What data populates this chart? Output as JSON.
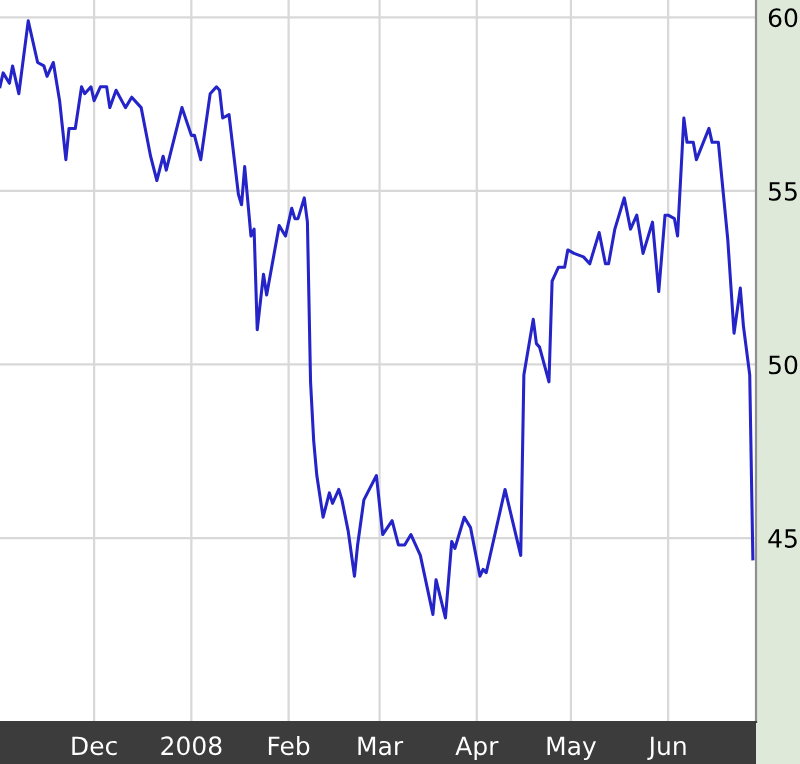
{
  "chart_data": {
    "type": "line",
    "x": [
      "2007-11-01",
      "2007-11-02",
      "2007-11-04",
      "2007-11-05",
      "2007-11-07",
      "2007-11-10",
      "2007-11-13",
      "2007-11-15",
      "2007-11-16",
      "2007-11-18",
      "2007-11-20",
      "2007-11-22",
      "2007-11-23",
      "2007-11-25",
      "2007-11-27",
      "2007-11-28",
      "2007-11-30",
      "2007-12-01",
      "2007-12-03",
      "2007-12-05",
      "2007-12-06",
      "2007-12-08",
      "2007-12-11",
      "2007-12-13",
      "2007-12-16",
      "2007-12-19",
      "2007-12-21",
      "2007-12-23",
      "2007-12-24",
      "2007-12-29",
      "2008-01-01",
      "2008-01-02",
      "2008-01-04",
      "2008-01-07",
      "2008-01-09",
      "2008-01-10",
      "2008-01-11",
      "2008-01-13",
      "2008-01-16",
      "2008-01-17",
      "2008-01-18",
      "2008-01-20",
      "2008-01-21",
      "2008-01-22",
      "2008-01-24",
      "2008-01-25",
      "2008-01-29",
      "2008-01-31",
      "2008-02-02",
      "2008-02-03",
      "2008-02-04",
      "2008-02-06",
      "2008-02-07",
      "2008-02-08",
      "2008-02-09",
      "2008-02-10",
      "2008-02-12",
      "2008-02-14",
      "2008-02-15",
      "2008-02-17",
      "2008-02-18",
      "2008-02-20",
      "2008-02-22",
      "2008-02-23",
      "2008-02-25",
      "2008-02-29",
      "2008-03-02",
      "2008-03-05",
      "2008-03-07",
      "2008-03-09",
      "2008-03-11",
      "2008-03-14",
      "2008-03-18",
      "2008-03-19",
      "2008-03-22",
      "2008-03-24",
      "2008-03-25",
      "2008-03-28",
      "2008-03-30",
      "2008-04-02",
      "2008-04-03",
      "2008-04-04",
      "2008-04-06",
      "2008-04-10",
      "2008-04-15",
      "2008-04-16",
      "2008-04-19",
      "2008-04-20",
      "2008-04-21",
      "2008-04-24",
      "2008-04-25",
      "2008-04-27",
      "2008-04-29",
      "2008-04-30",
      "2008-05-02",
      "2008-05-05",
      "2008-05-07",
      "2008-05-10",
      "2008-05-12",
      "2008-05-13",
      "2008-05-15",
      "2008-05-18",
      "2008-05-20",
      "2008-05-22",
      "2008-05-24",
      "2008-05-27",
      "2008-05-29",
      "2008-05-31",
      "2008-06-01",
      "2008-06-03",
      "2008-06-04",
      "2008-06-06",
      "2008-06-07",
      "2008-06-09",
      "2008-06-10",
      "2008-06-14",
      "2008-06-15",
      "2008-06-17",
      "2008-06-20",
      "2008-06-22",
      "2008-06-24",
      "2008-06-25",
      "2008-06-27",
      "2008-06-28"
    ],
    "series": [
      {
        "color": "#2424c8",
        "values": [
          58.0,
          58.4,
          58.1,
          58.6,
          57.8,
          59.9,
          58.7,
          58.6,
          58.3,
          58.7,
          57.6,
          55.9,
          56.8,
          56.8,
          58.0,
          57.8,
          58.0,
          57.6,
          58.0,
          58.0,
          57.4,
          57.9,
          57.4,
          57.7,
          57.4,
          56.0,
          55.3,
          56.0,
          55.6,
          57.4,
          56.6,
          56.6,
          55.9,
          57.8,
          58.0,
          57.9,
          57.1,
          57.2,
          54.9,
          54.6,
          55.7,
          53.7,
          53.9,
          51.0,
          52.6,
          52.0,
          54.0,
          53.7,
          54.5,
          54.2,
          54.2,
          54.8,
          54.1,
          49.5,
          47.8,
          46.8,
          45.6,
          46.3,
          46.0,
          46.4,
          46.1,
          45.2,
          43.9,
          44.8,
          46.1,
          46.8,
          45.1,
          45.5,
          44.8,
          44.8,
          45.1,
          44.5,
          42.8,
          43.8,
          42.7,
          44.9,
          44.7,
          45.6,
          45.3,
          43.9,
          44.1,
          44.0,
          44.8,
          46.4,
          44.5,
          49.7,
          51.3,
          50.6,
          50.5,
          49.5,
          52.4,
          52.8,
          52.8,
          53.3,
          53.2,
          53.1,
          52.9,
          53.8,
          52.9,
          52.9,
          53.9,
          54.8,
          53.9,
          54.3,
          53.2,
          54.1,
          52.1,
          54.3,
          54.3,
          54.2,
          53.7,
          57.1,
          56.4,
          56.4,
          55.9,
          56.8,
          56.4,
          56.4,
          53.6,
          50.9,
          52.2,
          51.1,
          49.7,
          44.4
        ]
      }
    ],
    "xlim": [
      "2007-11-01",
      "2008-06-29"
    ],
    "xticks": [
      {
        "value": "2007-12-01",
        "label": "Dec"
      },
      {
        "value": "2008-01-01",
        "label": "2008"
      },
      {
        "value": "2008-02-01",
        "label": "Feb"
      },
      {
        "value": "2008-03-01",
        "label": "Mar"
      },
      {
        "value": "2008-04-01",
        "label": "Apr"
      },
      {
        "value": "2008-05-01",
        "label": "May"
      },
      {
        "value": "2008-06-01",
        "label": "Jun"
      }
    ],
    "ylim": [
      39.7,
      60.5
    ],
    "yticks": [
      45,
      50,
      55,
      60
    ],
    "grid": true,
    "marker": "none",
    "line_style": "solid"
  }
}
